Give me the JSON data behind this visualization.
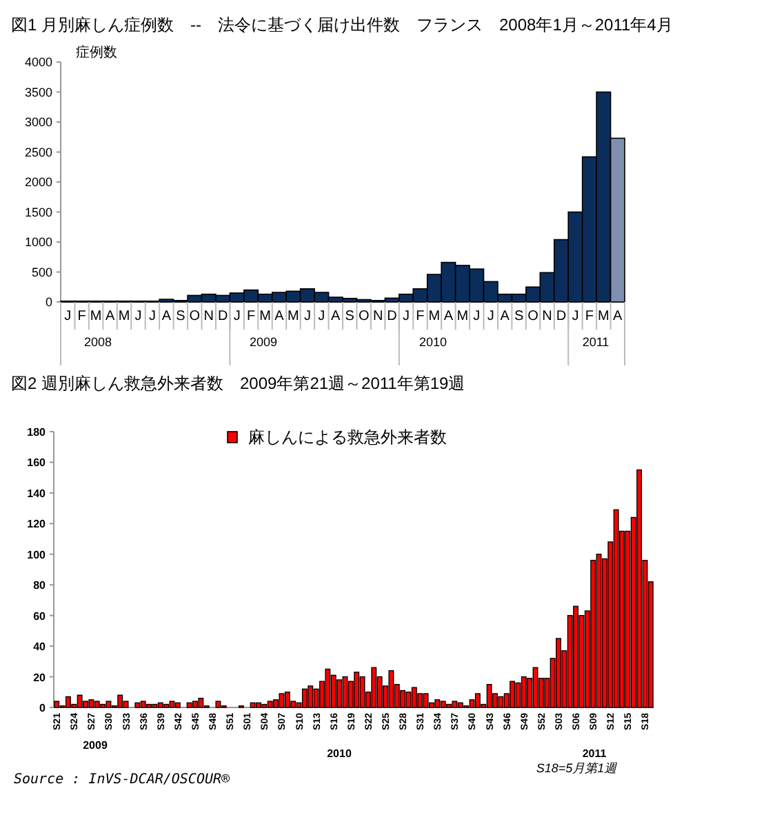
{
  "chart_data": [
    {
      "type": "bar",
      "title": "図1 月別麻しん症例数　--　法令に基づく届け出件数　フランス　2008年1月～2011年4月",
      "ylabel": "症例数",
      "categories": [
        "J",
        "F",
        "M",
        "A",
        "M",
        "J",
        "J",
        "A",
        "S",
        "O",
        "N",
        "D",
        "J",
        "F",
        "M",
        "A",
        "M",
        "J",
        "J",
        "A",
        "S",
        "O",
        "N",
        "D",
        "J",
        "F",
        "M",
        "A",
        "M",
        "J",
        "J",
        "A",
        "S",
        "O",
        "N",
        "D",
        "J",
        "F",
        "M",
        "A"
      ],
      "values": [
        15,
        15,
        15,
        15,
        15,
        15,
        15,
        45,
        25,
        110,
        130,
        110,
        150,
        200,
        130,
        160,
        180,
        220,
        160,
        80,
        60,
        40,
        25,
        65,
        130,
        220,
        460,
        660,
        610,
        550,
        340,
        130,
        130,
        250,
        490,
        1040,
        1500,
        2420,
        3500,
        2730
      ],
      "colors": [
        "#0b2d5b",
        "#0b2d5b",
        "#0b2d5b",
        "#0b2d5b",
        "#0b2d5b",
        "#0b2d5b",
        "#0b2d5b",
        "#0b2d5b",
        "#0b2d5b",
        "#0b2d5b",
        "#0b2d5b",
        "#0b2d5b",
        "#0b2d5b",
        "#0b2d5b",
        "#0b2d5b",
        "#0b2d5b",
        "#0b2d5b",
        "#0b2d5b",
        "#0b2d5b",
        "#0b2d5b",
        "#0b2d5b",
        "#0b2d5b",
        "#0b2d5b",
        "#0b2d5b",
        "#0b2d5b",
        "#0b2d5b",
        "#0b2d5b",
        "#0b2d5b",
        "#0b2d5b",
        "#0b2d5b",
        "#0b2d5b",
        "#0b2d5b",
        "#0b2d5b",
        "#0b2d5b",
        "#0b2d5b",
        "#0b2d5b",
        "#0b2d5b",
        "#0b2d5b",
        "#0b2d5b",
        "#7f8fb0"
      ],
      "ylim": [
        0,
        4000
      ],
      "yticks": [
        0,
        500,
        1000,
        1500,
        2000,
        2500,
        3000,
        3500,
        4000
      ],
      "annotations": [
        "2008",
        "2009",
        "2010",
        "2011"
      ]
    },
    {
      "type": "bar",
      "title": "図2 週別麻しん救急外来者数　2009年第21週～2011年第19週",
      "categories": [
        "S21",
        null,
        null,
        "S24",
        null,
        null,
        "S27",
        null,
        null,
        "S30",
        null,
        null,
        "S33",
        null,
        null,
        "S36",
        null,
        null,
        "S39",
        null,
        null,
        "S42",
        null,
        null,
        "S45",
        null,
        null,
        "S48",
        null,
        null,
        "S51",
        null,
        null,
        "S01",
        null,
        null,
        "S04",
        null,
        null,
        "S07",
        null,
        null,
        "S10",
        null,
        null,
        "S13",
        null,
        null,
        "S16",
        null,
        null,
        "S19",
        null,
        null,
        "S22",
        null,
        null,
        "S25",
        null,
        null,
        "S28",
        null,
        null,
        "S31",
        null,
        null,
        "S34",
        null,
        null,
        "S37",
        null,
        null,
        "S40",
        null,
        null,
        "S43",
        null,
        null,
        "S46",
        null,
        null,
        "S49",
        null,
        null,
        "S52",
        null,
        null,
        "S03",
        null,
        null,
        "S06",
        null,
        null,
        "S09",
        null,
        null,
        "S12",
        null,
        null,
        "S15",
        null,
        null,
        "S18",
        null
      ],
      "series": [
        {
          "name": "麻しんによる救急外来者数",
          "color": "#ff0000",
          "values": [
            4,
            1,
            7,
            2,
            8,
            4,
            5,
            4,
            2,
            4,
            1,
            8,
            4,
            0,
            3,
            4,
            2,
            2,
            3,
            2,
            4,
            3,
            0,
            3,
            4,
            6,
            1,
            0,
            4,
            1,
            0,
            0,
            1,
            0,
            3,
            3,
            2,
            4,
            5,
            9,
            10,
            4,
            3,
            12,
            14,
            12,
            17,
            25,
            21,
            18,
            20,
            17,
            23,
            20,
            10,
            26,
            20,
            14,
            24,
            15,
            11,
            10,
            13,
            9,
            9,
            3,
            5,
            4,
            2,
            4,
            3,
            1,
            5,
            9,
            2,
            15,
            9,
            7,
            9,
            17,
            16,
            20,
            19,
            26,
            19,
            19,
            32,
            45,
            37,
            60,
            66,
            60,
            63,
            96,
            100,
            97,
            108,
            129,
            115,
            115,
            124,
            155,
            96,
            82
          ]
        }
      ],
      "ylim": [
        0,
        180
      ],
      "yticks": [
        0,
        20,
        40,
        60,
        80,
        100,
        120,
        140,
        160,
        180
      ],
      "legend": "top",
      "annotations": [
        "2009",
        "2010",
        "2011",
        "S18=5月第1週",
        "Source : InVS-DCAR/OSCOUR®"
      ]
    }
  ]
}
